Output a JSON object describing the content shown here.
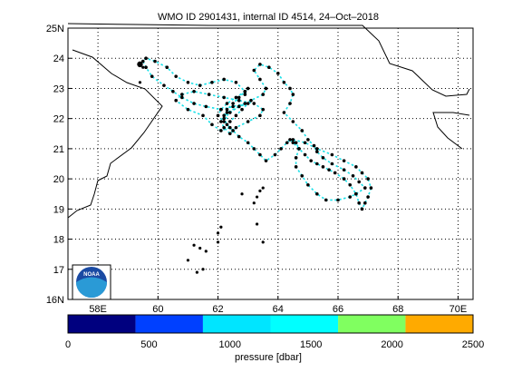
{
  "title": "WMO ID 2901431, internal ID 4514, 24–Oct–2018",
  "map": {
    "lon_min": 57.0,
    "lon_max": 70.5,
    "lat_min": 16.0,
    "lat_max": 25.0,
    "lon_ticks": [
      58,
      60,
      62,
      64,
      66,
      68,
      70
    ],
    "lon_labels": [
      "58E",
      "60",
      "62",
      "64",
      "66",
      "68",
      "70E"
    ],
    "lat_ticks": [
      16,
      17,
      18,
      19,
      20,
      21,
      22,
      23,
      24,
      25
    ],
    "lat_labels": [
      "16N",
      "17",
      "18",
      "19",
      "20",
      "21",
      "22",
      "23",
      "24",
      "25N"
    ],
    "grid": true
  },
  "logo": {
    "text": "NOAA",
    "icon": "noaa-logo"
  },
  "colorbar": {
    "label": "pressure [dbar]",
    "tick_labels": [
      "0",
      "500",
      "1000",
      "1500",
      "2000",
      "2500"
    ],
    "bins": [
      {
        "from": 0,
        "to": 417,
        "color": "#00007f"
      },
      {
        "from": 417,
        "to": 833,
        "color": "#0040ff"
      },
      {
        "from": 833,
        "to": 1250,
        "color": "#00e5ff"
      },
      {
        "from": 1250,
        "to": 1667,
        "color": "#00ffff"
      },
      {
        "from": 1667,
        "to": 2083,
        "color": "#80ff60"
      },
      {
        "from": 2083,
        "to": 2500,
        "color": "#ffaa00"
      }
    ]
  },
  "chart_data": {
    "type": "scatter",
    "title": "WMO ID 2901431, internal ID 4514, 24–Oct–2018",
    "xlabel": "",
    "ylabel": "",
    "x_unit": "degrees East",
    "y_unit": "degrees North",
    "xlim": [
      57.0,
      70.5
    ],
    "ylim": [
      16.0,
      25.0
    ],
    "track_color": "#19e0e8",
    "point_color": "#000000",
    "track": {
      "lon": [
        62.9,
        62.5,
        62.1,
        61.6,
        61.2,
        60.8,
        60.5,
        60.2,
        59.8,
        59.6,
        59.5,
        59.6,
        59.9,
        60.3,
        60.6,
        61.0,
        61.4,
        61.8,
        62.2,
        62.6,
        62.9,
        62.6,
        62.3,
        62.1,
        62.0,
        62.2,
        62.4,
        62.1,
        61.8,
        61.5,
        61.0,
        60.6,
        60.8,
        61.2,
        61.7,
        62.2,
        62.7,
        63.2,
        63.5,
        63.4,
        63.0,
        62.6,
        62.4,
        62.2,
        62.1,
        62.3,
        62.7,
        63.1,
        63.5,
        63.6,
        63.4,
        63.2,
        63.4,
        63.7,
        64.0,
        64.2,
        64.4,
        64.5,
        64.4,
        64.2,
        64.5,
        64.8,
        65.0,
        65.2,
        65.3,
        65.5,
        65.8,
        66.2,
        66.5,
        66.7,
        66.9,
        66.6,
        66.4,
        66.0,
        65.6,
        65.3,
        65.0,
        64.8,
        64.6,
        64.6,
        64.7,
        64.6,
        64.5,
        64.9,
        65.3,
        65.8,
        66.2,
        66.6,
        66.8,
        67.0,
        67.1,
        67.0,
        66.9,
        66.8,
        66.7,
        66.6,
        66.4,
        66.2,
        65.9,
        65.7,
        65.5,
        65.3,
        65.1,
        64.9,
        64.7,
        64.5,
        64.4,
        64.3,
        64.1,
        63.9,
        63.6,
        63.4,
        63.2,
        63.0,
        62.7,
        62.5,
        62.3,
        62.2,
        62.4,
        62.7,
        63.0,
        62.8,
        62.6,
        62.4,
        62.2,
        62.3,
        62.5,
        62.7,
        62.9,
        63.0,
        62.9
      ],
      "lat": [
        22.5,
        22.4,
        22.3,
        22.4,
        22.5,
        22.7,
        22.9,
        23.1,
        23.4,
        23.7,
        23.9,
        24.0,
        23.9,
        23.7,
        23.4,
        23.2,
        23.1,
        23.2,
        23.3,
        23.2,
        22.9,
        22.7,
        22.5,
        22.3,
        22.1,
        21.9,
        21.7,
        21.6,
        21.8,
        22.1,
        22.3,
        22.6,
        22.8,
        22.9,
        22.8,
        22.7,
        22.6,
        22.5,
        22.3,
        22.1,
        21.9,
        21.7,
        21.5,
        21.7,
        21.9,
        22.2,
        22.4,
        22.6,
        22.8,
        23.0,
        23.3,
        23.6,
        23.8,
        23.7,
        23.5,
        23.2,
        23.0,
        22.8,
        22.5,
        22.2,
        21.9,
        21.6,
        21.3,
        21.1,
        20.9,
        20.7,
        20.5,
        20.3,
        20.1,
        19.9,
        19.7,
        19.5,
        19.4,
        19.3,
        19.3,
        19.5,
        19.8,
        20.1,
        20.4,
        20.7,
        21.0,
        21.2,
        21.3,
        21.2,
        21.0,
        20.8,
        20.6,
        20.4,
        20.2,
        20.0,
        19.7,
        19.4,
        19.2,
        19.0,
        19.2,
        19.5,
        19.8,
        20.0,
        20.2,
        20.3,
        20.4,
        20.5,
        20.6,
        20.8,
        21.0,
        21.2,
        21.3,
        21.2,
        21.0,
        20.8,
        20.6,
        20.8,
        21.0,
        21.2,
        21.4,
        21.6,
        21.8,
        22.0,
        22.2,
        22.4,
        22.5,
        22.3,
        22.1,
        21.9,
        22.1,
        22.3,
        22.5,
        22.7,
        22.9,
        23.0,
        22.8
      ]
    },
    "points": {
      "lon": [
        59.4,
        59.5,
        59.4,
        61.2,
        61.0,
        61.3,
        61.6,
        61.5,
        61.4,
        62.0,
        62.1,
        62.0,
        62.8,
        63.2,
        63.3,
        63.4,
        63.5,
        63.5,
        63.3
      ],
      "lat": [
        23.8,
        23.7,
        23.2,
        17.8,
        17.3,
        16.9,
        17.6,
        17.0,
        17.7,
        18.2,
        18.4,
        17.9,
        19.5,
        19.2,
        19.4,
        19.6,
        19.7,
        17.9,
        18.5
      ]
    }
  }
}
